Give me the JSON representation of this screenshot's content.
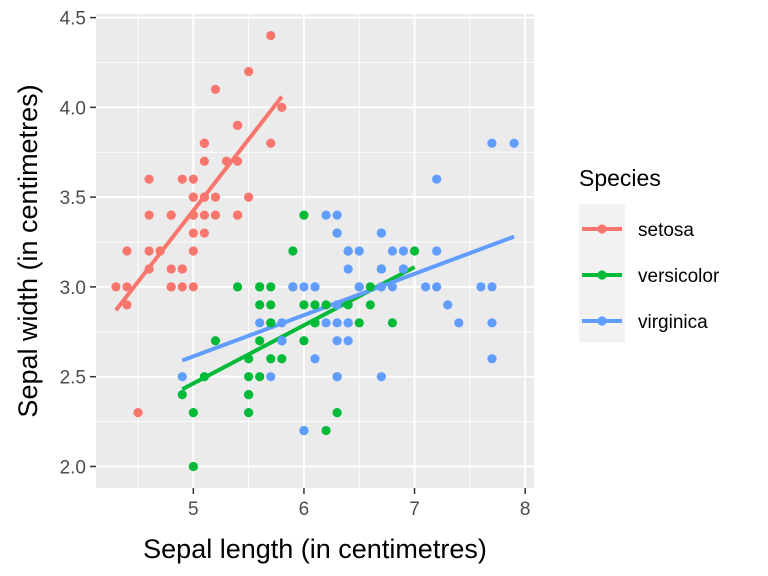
{
  "chart_data": {
    "type": "scatter",
    "xlabel": "Sepal length (in centimetres)",
    "ylabel": "Sepal width (in centimetres)",
    "xlim": [
      4.12,
      8.08
    ],
    "ylim": [
      1.88,
      4.52
    ],
    "x_ticks": [
      5,
      6,
      7,
      8
    ],
    "y_ticks": [
      2.0,
      2.5,
      3.0,
      3.5,
      4.0,
      4.5
    ],
    "x_tick_labels": [
      "5",
      "6",
      "7",
      "8"
    ],
    "y_tick_labels": [
      "2.0",
      "2.5",
      "3.0",
      "3.5",
      "4.0",
      "4.5"
    ],
    "grid": true,
    "legend": {
      "title": "Species",
      "placement": "right"
    },
    "series": [
      {
        "name": "setosa",
        "color": "#F8766D",
        "trend": [
          [
            4.3,
            2.87
          ],
          [
            5.8,
            4.06
          ]
        ],
        "points": [
          [
            5.1,
            3.5
          ],
          [
            4.9,
            3.0
          ],
          [
            4.7,
            3.2
          ],
          [
            4.6,
            3.1
          ],
          [
            5.0,
            3.6
          ],
          [
            5.4,
            3.9
          ],
          [
            4.6,
            3.4
          ],
          [
            5.0,
            3.4
          ],
          [
            4.4,
            2.9
          ],
          [
            4.9,
            3.1
          ],
          [
            5.4,
            3.7
          ],
          [
            4.8,
            3.4
          ],
          [
            4.8,
            3.0
          ],
          [
            4.3,
            3.0
          ],
          [
            5.8,
            4.0
          ],
          [
            5.7,
            4.4
          ],
          [
            5.4,
            3.9
          ],
          [
            5.1,
            3.5
          ],
          [
            5.7,
            3.8
          ],
          [
            5.1,
            3.8
          ],
          [
            5.4,
            3.4
          ],
          [
            5.1,
            3.7
          ],
          [
            4.6,
            3.6
          ],
          [
            5.1,
            3.3
          ],
          [
            4.8,
            3.4
          ],
          [
            5.0,
            3.0
          ],
          [
            5.0,
            3.4
          ],
          [
            5.2,
            3.5
          ],
          [
            5.2,
            3.4
          ],
          [
            4.7,
            3.2
          ],
          [
            4.8,
            3.1
          ],
          [
            5.4,
            3.4
          ],
          [
            5.2,
            4.1
          ],
          [
            5.5,
            4.2
          ],
          [
            4.9,
            3.1
          ],
          [
            5.0,
            3.2
          ],
          [
            5.5,
            3.5
          ],
          [
            4.9,
            3.6
          ],
          [
            4.4,
            3.0
          ],
          [
            5.1,
            3.4
          ],
          [
            5.0,
            3.5
          ],
          [
            4.5,
            2.3
          ],
          [
            4.4,
            3.2
          ],
          [
            5.0,
            3.5
          ],
          [
            5.1,
            3.8
          ],
          [
            4.8,
            3.0
          ],
          [
            5.1,
            3.8
          ],
          [
            4.6,
            3.2
          ],
          [
            5.3,
            3.7
          ],
          [
            5.0,
            3.3
          ]
        ]
      },
      {
        "name": "versicolor",
        "color": "#00BA38",
        "trend": [
          [
            4.9,
            2.43
          ],
          [
            7.0,
            3.11
          ]
        ],
        "points": [
          [
            7.0,
            3.2
          ],
          [
            6.4,
            3.2
          ],
          [
            6.9,
            3.1
          ],
          [
            5.5,
            2.3
          ],
          [
            6.5,
            2.8
          ],
          [
            5.7,
            2.8
          ],
          [
            6.3,
            3.3
          ],
          [
            4.9,
            2.4
          ],
          [
            6.6,
            2.9
          ],
          [
            5.2,
            2.7
          ],
          [
            5.0,
            2.0
          ],
          [
            5.9,
            3.0
          ],
          [
            6.0,
            2.2
          ],
          [
            6.1,
            2.9
          ],
          [
            5.6,
            2.9
          ],
          [
            6.7,
            3.1
          ],
          [
            5.6,
            3.0
          ],
          [
            5.8,
            2.7
          ],
          [
            6.2,
            2.2
          ],
          [
            5.6,
            2.5
          ],
          [
            5.9,
            3.2
          ],
          [
            6.1,
            2.8
          ],
          [
            6.3,
            2.5
          ],
          [
            6.1,
            2.8
          ],
          [
            6.4,
            2.9
          ],
          [
            6.6,
            3.0
          ],
          [
            6.8,
            2.8
          ],
          [
            6.7,
            3.0
          ],
          [
            6.0,
            2.9
          ],
          [
            5.7,
            2.6
          ],
          [
            5.5,
            2.4
          ],
          [
            5.5,
            2.4
          ],
          [
            5.8,
            2.7
          ],
          [
            6.0,
            2.7
          ],
          [
            5.4,
            3.0
          ],
          [
            6.0,
            3.4
          ],
          [
            6.7,
            3.1
          ],
          [
            6.3,
            2.3
          ],
          [
            5.6,
            3.0
          ],
          [
            5.5,
            2.5
          ],
          [
            5.5,
            2.6
          ],
          [
            6.1,
            3.0
          ],
          [
            5.8,
            2.6
          ],
          [
            5.0,
            2.3
          ],
          [
            5.6,
            2.7
          ],
          [
            5.7,
            3.0
          ],
          [
            5.7,
            2.9
          ],
          [
            6.2,
            2.9
          ],
          [
            5.1,
            2.5
          ],
          [
            5.7,
            2.8
          ]
        ]
      },
      {
        "name": "virginica",
        "color": "#619CFF",
        "trend": [
          [
            4.9,
            2.59
          ],
          [
            7.9,
            3.28
          ]
        ],
        "points": [
          [
            6.3,
            3.3
          ],
          [
            5.8,
            2.7
          ],
          [
            7.1,
            3.0
          ],
          [
            6.3,
            2.9
          ],
          [
            6.5,
            3.0
          ],
          [
            7.6,
            3.0
          ],
          [
            4.9,
            2.5
          ],
          [
            7.3,
            2.9
          ],
          [
            6.7,
            2.5
          ],
          [
            7.2,
            3.6
          ],
          [
            6.5,
            3.2
          ],
          [
            6.4,
            2.7
          ],
          [
            6.8,
            3.0
          ],
          [
            5.7,
            2.5
          ],
          [
            5.8,
            2.8
          ],
          [
            6.4,
            3.2
          ],
          [
            6.5,
            3.0
          ],
          [
            7.7,
            3.8
          ],
          [
            7.7,
            2.6
          ],
          [
            6.0,
            2.2
          ],
          [
            6.9,
            3.2
          ],
          [
            5.6,
            2.8
          ],
          [
            7.7,
            2.8
          ],
          [
            6.3,
            2.7
          ],
          [
            6.7,
            3.3
          ],
          [
            7.2,
            3.2
          ],
          [
            6.2,
            2.8
          ],
          [
            6.1,
            3.0
          ],
          [
            6.4,
            2.8
          ],
          [
            7.2,
            3.0
          ],
          [
            7.4,
            2.8
          ],
          [
            7.9,
            3.8
          ],
          [
            6.4,
            2.8
          ],
          [
            6.3,
            2.8
          ],
          [
            6.1,
            2.6
          ],
          [
            7.7,
            3.0
          ],
          [
            6.3,
            3.4
          ],
          [
            6.4,
            3.1
          ],
          [
            6.0,
            3.0
          ],
          [
            6.9,
            3.1
          ],
          [
            6.7,
            3.1
          ],
          [
            6.9,
            3.1
          ],
          [
            5.8,
            2.7
          ],
          [
            6.8,
            3.2
          ],
          [
            6.7,
            3.3
          ],
          [
            6.7,
            3.0
          ],
          [
            6.3,
            2.5
          ],
          [
            6.5,
            3.0
          ],
          [
            6.2,
            3.4
          ],
          [
            5.9,
            3.0
          ]
        ]
      }
    ]
  }
}
